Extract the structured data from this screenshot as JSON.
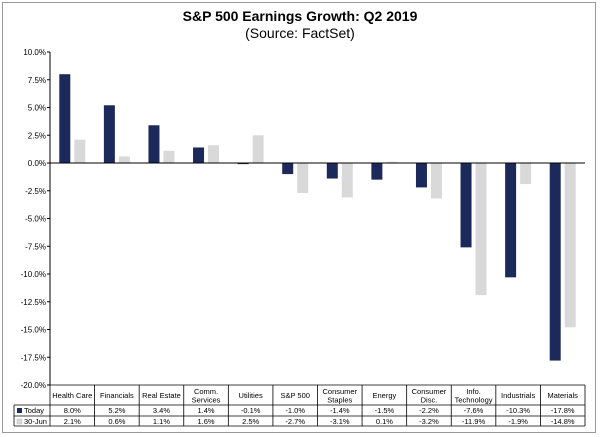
{
  "chart_data": {
    "type": "bar",
    "title": "S&P 500 Earnings Growth: Q2 2019",
    "subtitle": "(Source: FactSet)",
    "categories": [
      "Health Care",
      "Financials",
      "Real Estate",
      "Comm. Services",
      "Utilities",
      "S&P 500",
      "Consumer Staples",
      "Energy",
      "Consumer Disc.",
      "Info. Technology",
      "Industrials",
      "Materials"
    ],
    "category_lines": [
      [
        "Health Care"
      ],
      [
        "Financials"
      ],
      [
        "Real Estate"
      ],
      [
        "Comm.",
        "Services"
      ],
      [
        "Utilities"
      ],
      [
        "S&P 500"
      ],
      [
        "Consumer",
        "Staples"
      ],
      [
        "Energy"
      ],
      [
        "Consumer",
        "Disc."
      ],
      [
        "Info.",
        "Technology"
      ],
      [
        "Industrials"
      ],
      [
        "Materials"
      ]
    ],
    "series": [
      {
        "name": "Today",
        "color": "#1c2a5b",
        "values": [
          8.0,
          5.2,
          3.4,
          1.4,
          -0.1,
          -1.0,
          -1.4,
          -1.5,
          -2.2,
          -7.6,
          -10.3,
          -17.8
        ],
        "labels": [
          "8.0%",
          "5.2%",
          "3.4%",
          "1.4%",
          "-0.1%",
          "-1.0%",
          "-1.4%",
          "-1.5%",
          "-2.2%",
          "-7.6%",
          "-10.3%",
          "-17.8%"
        ]
      },
      {
        "name": "30-Jun",
        "color": "#d9d9d9",
        "values": [
          2.1,
          0.6,
          1.1,
          1.6,
          2.5,
          -2.7,
          -3.1,
          0.1,
          -3.2,
          -11.9,
          -1.9,
          -14.8
        ],
        "labels": [
          "2.1%",
          "0.6%",
          "1.1%",
          "1.6%",
          "2.5%",
          "-2.7%",
          "-3.1%",
          "0.1%",
          "-3.2%",
          "-11.9%",
          "-1.9%",
          "-14.8%"
        ]
      }
    ],
    "ylim": [
      -20,
      10
    ],
    "yticks": [
      10,
      7.5,
      5,
      2.5,
      0,
      -2.5,
      -5,
      -7.5,
      -10,
      -12.5,
      -15,
      -17.5,
      -20
    ],
    "ytick_labels": [
      "10.0%",
      "7.5%",
      "5.0%",
      "2.5%",
      "0.0%",
      "-2.5%",
      "-5.0%",
      "-7.5%",
      "-10.0%",
      "-12.5%",
      "-15.0%",
      "-17.5%",
      "-20.0%"
    ],
    "xlabel": "",
    "ylabel": "",
    "grid": false,
    "legend": "data-table-left"
  }
}
